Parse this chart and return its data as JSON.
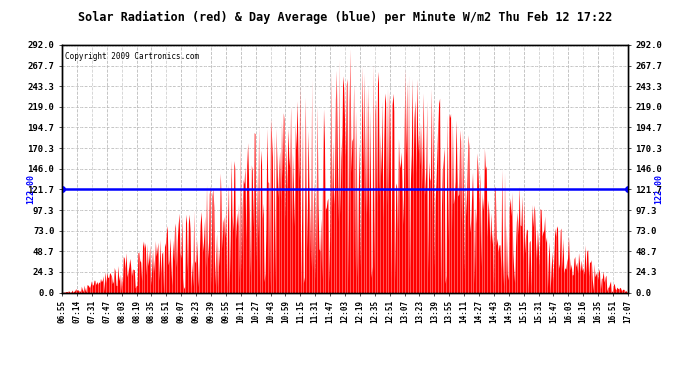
{
  "title": "Solar Radiation (red) & Day Average (blue) per Minute W/m2 Thu Feb 12 17:22",
  "copyright": "Copyright 2009 Cartronics.com",
  "y_max": 292.0,
  "y_min": 0.0,
  "y_ticks": [
    0.0,
    24.3,
    48.7,
    73.0,
    97.3,
    121.7,
    146.0,
    170.3,
    194.7,
    219.0,
    243.3,
    267.7,
    292.0
  ],
  "day_average": 122.0,
  "bar_color": "#FF0000",
  "avg_line_color": "#0000FF",
  "background_color": "#FFFFFF",
  "plot_bg_color": "#FFFFFF",
  "grid_color": "#BBBBBB",
  "left_label": "122.00",
  "right_label": "122.00",
  "x_labels": [
    "06:55",
    "07:14",
    "07:31",
    "07:47",
    "08:03",
    "08:19",
    "08:35",
    "08:51",
    "09:07",
    "09:23",
    "09:39",
    "09:55",
    "10:11",
    "10:27",
    "10:43",
    "10:59",
    "11:15",
    "11:31",
    "11:47",
    "12:03",
    "12:19",
    "12:35",
    "12:51",
    "13:07",
    "13:23",
    "13:39",
    "13:55",
    "14:11",
    "14:27",
    "14:43",
    "14:59",
    "15:15",
    "15:31",
    "15:47",
    "16:03",
    "16:16",
    "16:35",
    "16:51",
    "17:07"
  ]
}
